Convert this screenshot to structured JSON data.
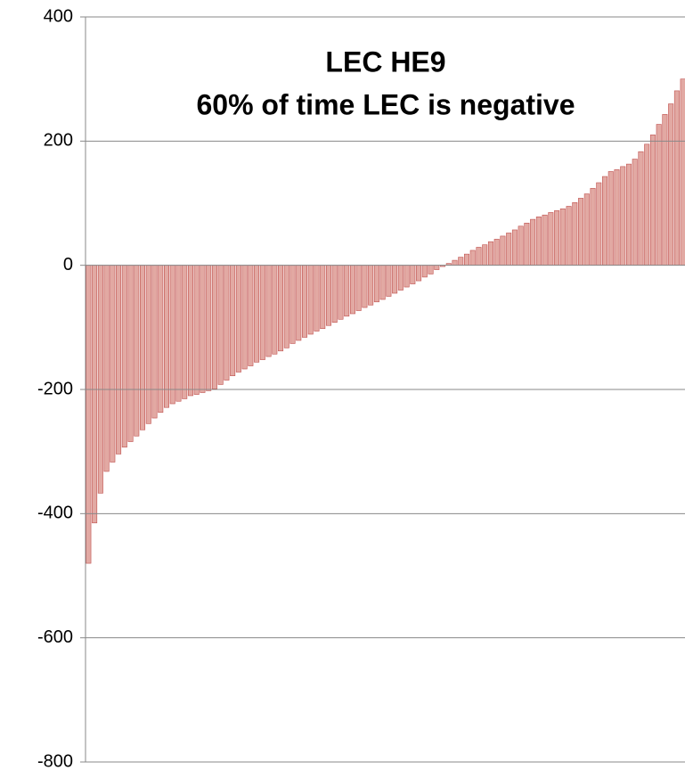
{
  "chart_data": {
    "type": "bar",
    "title": "LEC HE9",
    "subtitle": "60% of time LEC is negative",
    "categories": [
      null,
      null,
      null,
      null,
      null,
      null,
      null,
      null,
      null,
      null,
      null,
      null,
      null,
      null,
      null,
      null,
      null,
      null,
      null,
      null,
      null,
      null,
      null,
      null,
      null,
      null,
      null,
      null,
      null,
      null,
      null,
      null,
      null,
      null,
      null,
      null,
      null,
      null,
      null,
      null,
      null,
      null,
      null,
      null,
      null,
      null,
      null,
      null,
      null,
      null,
      null,
      null,
      null,
      null,
      null,
      null,
      null,
      null,
      null,
      null,
      null,
      null,
      null,
      null,
      null,
      null,
      null,
      null,
      null,
      null,
      null,
      null,
      null,
      null,
      null,
      null,
      null,
      null,
      null,
      null,
      null,
      null,
      null,
      null,
      null,
      null,
      null,
      null,
      null,
      null,
      null,
      null,
      null,
      null,
      null,
      null,
      null,
      null,
      null,
      null
    ],
    "values": [
      -480,
      -415,
      -367,
      -332,
      -317,
      -304,
      -293,
      -284,
      -275,
      -265,
      -255,
      -246,
      -237,
      -229,
      -223,
      -219,
      -215,
      -210,
      -208,
      -205,
      -202,
      -199,
      -192,
      -185,
      -178,
      -172,
      -167,
      -162,
      -156,
      -152,
      -147,
      -143,
      -138,
      -133,
      -126,
      -121,
      -116,
      -111,
      -106,
      -102,
      -97,
      -92,
      -87,
      -82,
      -78,
      -73,
      -68,
      -64,
      -59,
      -55,
      -50,
      -45,
      -40,
      -35,
      -30,
      -25,
      -19,
      -14,
      -7,
      -2,
      3,
      8,
      13,
      18,
      24,
      29,
      33,
      38,
      42,
      47,
      52,
      57,
      63,
      68,
      74,
      78,
      81,
      85,
      88,
      91,
      95,
      101,
      108,
      115,
      124,
      133,
      143,
      151,
      154,
      159,
      163,
      171,
      183,
      195,
      210,
      227,
      243,
      260,
      281,
      300
    ],
    "color": "#e2a9a3",
    "ylim": [
      -800,
      400
    ],
    "yticks": [
      -800,
      -600,
      -400,
      -200,
      0,
      200,
      400
    ],
    "grid": true
  }
}
